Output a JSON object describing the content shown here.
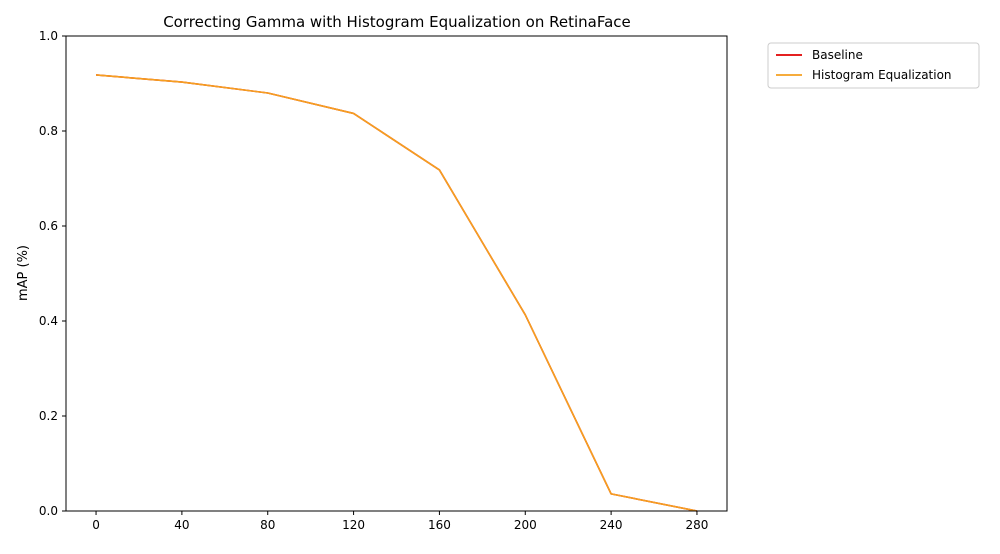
{
  "chart_data": {
    "type": "line",
    "title": "Correcting Gamma with Histogram Equalization on RetinaFace",
    "xlabel": "",
    "ylabel": "mAP (%)",
    "x": [
      0,
      40,
      80,
      120,
      160,
      200,
      240,
      280
    ],
    "xlim": [
      -14,
      294
    ],
    "ylim": [
      0.0,
      1.0
    ],
    "xticks": [
      0,
      40,
      80,
      120,
      160,
      200,
      240,
      280
    ],
    "xtick_labels": [
      "0",
      "40",
      "80",
      "120",
      "160",
      "200",
      "240",
      "280"
    ],
    "yticks": [
      0.0,
      0.2,
      0.4,
      0.6,
      0.8,
      1.0
    ],
    "ytick_labels": [
      "0.0",
      "0.2",
      "0.4",
      "0.6",
      "0.8",
      "1.0"
    ],
    "grid": false,
    "legend_position": "outside-top-right",
    "series": [
      {
        "name": "Baseline",
        "color": "#e00000",
        "values": [
          0.918,
          0.903,
          0.88,
          0.837,
          0.718,
          0.413,
          0.036,
          0.0
        ]
      },
      {
        "name": "Histogram Equalization",
        "color": "#f5a020",
        "values": [
          0.918,
          0.903,
          0.88,
          0.837,
          0.718,
          0.413,
          0.036,
          0.0
        ]
      }
    ]
  }
}
